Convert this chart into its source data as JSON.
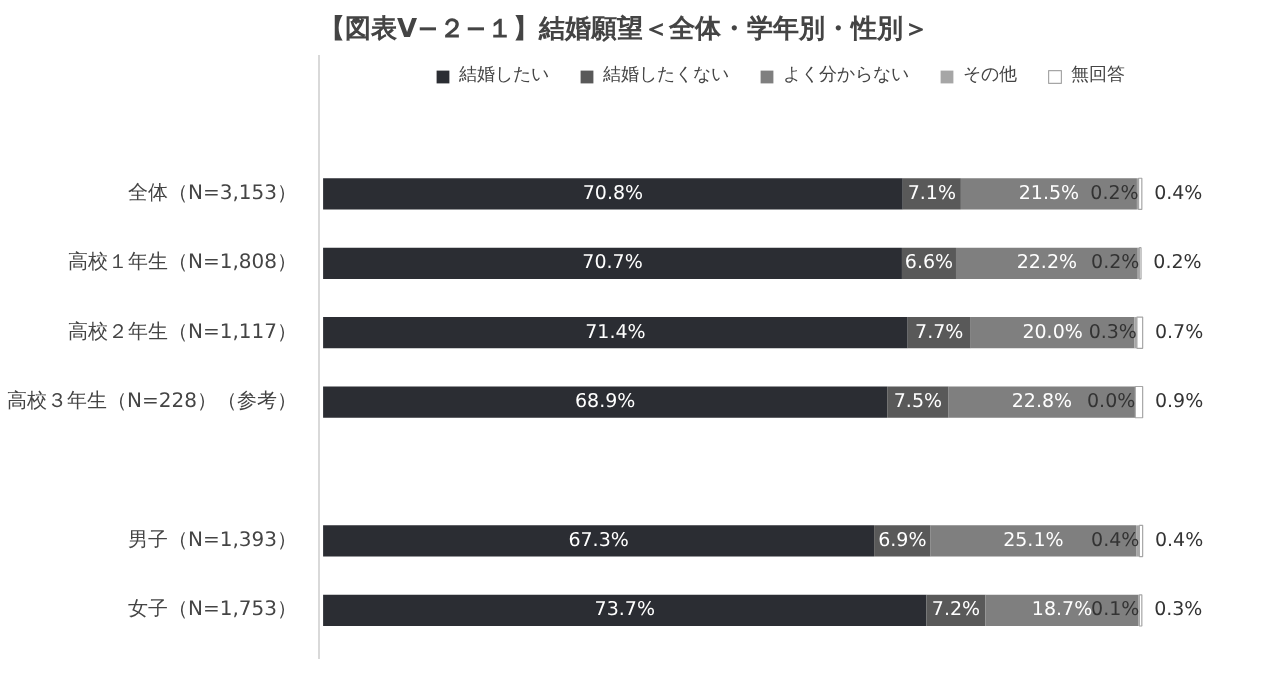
{
  "chart_data": {
    "type": "bar",
    "orientation": "horizontal",
    "stacked": true,
    "title": "【図表Ⅴ−２−１】結婚願望＜全体・学年別・性別＞",
    "legend": "top",
    "grid": false,
    "categories": [
      "全体（N=3,153）",
      "高校１年生（N=1,808）",
      "高校２年生（N=1,117）",
      "高校３年生（N=228）（参考）",
      null,
      "男子（N=1,393）",
      "女子（N=1,753）"
    ],
    "series": [
      {
        "name": "結婚したい",
        "color": "#2b2d33",
        "values": [
          70.8,
          70.7,
          71.4,
          68.9,
          null,
          67.3,
          73.7
        ],
        "value_labels": [
          "70.8%",
          "70.7%",
          "71.4%",
          "68.9%",
          null,
          "67.3%",
          "73.7%"
        ]
      },
      {
        "name": "結婚したくない",
        "color": "#595959",
        "values": [
          7.1,
          6.6,
          7.7,
          7.5,
          null,
          6.9,
          7.2
        ],
        "value_labels": [
          "7.1%",
          "6.6%",
          "7.7%",
          "7.5%",
          null,
          "6.9%",
          "7.2%"
        ]
      },
      {
        "name": "よく分からない",
        "color": "#7f7f7f",
        "values": [
          21.5,
          22.2,
          20.0,
          22.8,
          null,
          25.1,
          18.7
        ],
        "value_labels": [
          "21.5%",
          "22.2%",
          "20.0%",
          "22.8%",
          null,
          "25.1%",
          "18.7%"
        ]
      },
      {
        "name": "その他",
        "color": "#a6a6a6",
        "values": [
          0.2,
          0.2,
          0.3,
          0.0,
          null,
          0.4,
          0.1
        ],
        "value_labels": [
          "0.2%",
          "0.2%",
          "0.3%",
          "0.0%",
          null,
          "0.4%",
          "0.1%"
        ]
      },
      {
        "name": "無回答",
        "color": "#ffffff",
        "values": [
          0.4,
          0.2,
          0.7,
          0.9,
          null,
          0.4,
          0.3
        ],
        "value_labels": [
          "0.4%",
          "0.2%",
          "0.7%",
          "0.9%",
          null,
          "0.4%",
          "0.3%"
        ]
      }
    ]
  }
}
